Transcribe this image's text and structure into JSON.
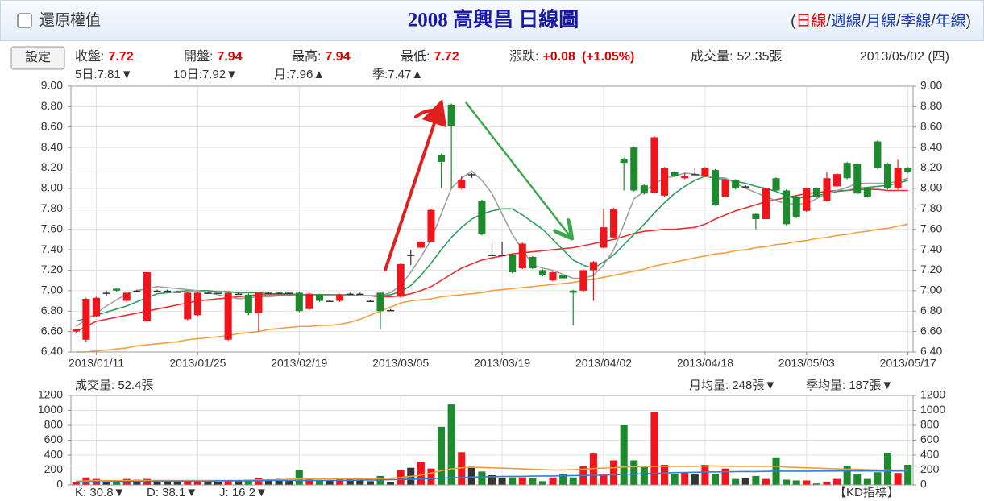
{
  "header": {
    "checkbox_label": "還原權值",
    "title": "2008 高興昌 日線圖",
    "open": "(",
    "close": ")",
    "separator": "/",
    "periods": [
      "日線",
      "週線",
      "月線",
      "季線",
      "年線"
    ],
    "period_colors": [
      "#e00000",
      "#1a3fae",
      "#1a3fae",
      "#1a3fae",
      "#1a3fae"
    ]
  },
  "info": {
    "button": "設定",
    "items": [
      {
        "label": "收盤:",
        "value": "7.72",
        "color": "#e00000",
        "bold": true
      },
      {
        "label": "開盤:",
        "value": "7.94",
        "color": "#e00000",
        "bold": true
      },
      {
        "label": "最高:",
        "value": "7.94",
        "color": "#e00000",
        "bold": true
      },
      {
        "label": "最低:",
        "value": "7.72",
        "color": "#e00000",
        "bold": true
      },
      {
        "label": "漲跌:",
        "value": "+0.08",
        "value2": "(+1.05%)",
        "color": "#e00000",
        "bold": true
      },
      {
        "label": "成交量:",
        "value": "52.35張",
        "color": "#333333",
        "bold": false
      }
    ],
    "date": "2013/05/02 (四)"
  },
  "ma_labels": [
    {
      "text": "5日:7.81▼",
      "color": "#8a8a8a"
    },
    {
      "text": "10日:7.92▼",
      "color": "#1f8a4c"
    },
    {
      "text": "月:7.96▲",
      "color": "#e53030"
    },
    {
      "text": "季:7.47▲",
      "color": "#f08a1c"
    }
  ],
  "chart_data": [
    {
      "type": "candlestick",
      "grid": true,
      "up_color": "#f0141b",
      "down_color": "#1e8a2e",
      "flat_color": "#333333",
      "categories": [
        null,
        null,
        "2013/01/11",
        null,
        null,
        null,
        null,
        null,
        null,
        null,
        null,
        null,
        "2013/01/25",
        null,
        null,
        null,
        null,
        null,
        null,
        null,
        null,
        null,
        "2013/02/19",
        null,
        null,
        null,
        null,
        null,
        null,
        null,
        null,
        null,
        "2013/03/05",
        null,
        null,
        null,
        null,
        null,
        null,
        null,
        null,
        null,
        "2013/03/19",
        null,
        null,
        null,
        null,
        null,
        null,
        null,
        null,
        null,
        "2013/04/02",
        null,
        null,
        null,
        null,
        null,
        null,
        null,
        null,
        null,
        "2013/04/18",
        null,
        null,
        null,
        null,
        null,
        null,
        null,
        null,
        null,
        "2013/05/03",
        null,
        null,
        null,
        null,
        null,
        null,
        null,
        null,
        null,
        "2013/05/17"
      ],
      "open": [
        6.6,
        6.52,
        6.75,
        6.98,
        7.02,
        6.9,
        7.0,
        6.7,
        7.0,
        7.0,
        6.99,
        6.72,
        6.76,
        6.98,
        6.98,
        6.52,
        6.97,
        6.96,
        6.78,
        6.98,
        6.98,
        6.98,
        6.98,
        6.82,
        6.96,
        6.9,
        6.9,
        6.97,
        6.97,
        6.9,
        6.98,
        6.81,
        6.94,
        7.35,
        7.42,
        7.48,
        8.33,
        8.82,
        8.0,
        8.14,
        7.88,
        7.35,
        7.35,
        7.35,
        7.22,
        7.33,
        7.2,
        7.1,
        7.15,
        7.0,
        7.0,
        7.2,
        7.42,
        7.52,
        8.29,
        8.4,
        8.03,
        7.96,
        7.93,
        8.16,
        8.1,
        8.14,
        8.12,
        8.18,
        7.92,
        8.08,
        8.02,
        7.75,
        7.7,
        8.1,
        7.98,
        7.92,
        7.78,
        8.0,
        7.88,
        8.02,
        8.25,
        8.24,
        8.0,
        8.46,
        8.24,
        8.0,
        8.2
      ],
      "high": [
        6.63,
        6.93,
        6.94,
        7.0,
        7.02,
        6.99,
        7.01,
        7.19,
        7.01,
        7.01,
        7.0,
        6.99,
        6.99,
        6.99,
        6.99,
        6.99,
        6.98,
        6.97,
        6.99,
        6.99,
        6.99,
        6.99,
        6.99,
        6.98,
        6.97,
        6.91,
        6.97,
        6.98,
        6.98,
        6.91,
        6.99,
        6.82,
        7.27,
        7.4,
        7.49,
        7.8,
        8.34,
        8.83,
        8.12,
        8.15,
        7.89,
        7.48,
        7.48,
        7.36,
        7.47,
        7.34,
        7.21,
        7.19,
        7.16,
        7.01,
        7.21,
        7.29,
        7.8,
        7.81,
        8.3,
        8.41,
        8.04,
        8.51,
        8.21,
        8.17,
        8.15,
        8.2,
        8.21,
        8.19,
        8.09,
        8.09,
        8.03,
        7.76,
        8.01,
        8.11,
        7.99,
        7.93,
        8.01,
        8.01,
        8.16,
        8.15,
        8.26,
        8.25,
        8.01,
        8.47,
        8.25,
        8.28,
        8.21
      ],
      "low": [
        6.59,
        6.5,
        6.74,
        6.95,
        6.99,
        6.89,
        6.99,
        6.69,
        6.99,
        6.99,
        6.98,
        6.71,
        6.75,
        6.97,
        6.97,
        6.51,
        6.96,
        6.76,
        6.6,
        6.97,
        6.97,
        6.97,
        6.79,
        6.81,
        6.89,
        6.89,
        6.89,
        6.96,
        6.96,
        6.89,
        6.62,
        6.8,
        6.93,
        7.25,
        7.41,
        7.47,
        8.0,
        8.0,
        7.99,
        8.1,
        7.54,
        7.34,
        7.34,
        7.17,
        7.21,
        7.21,
        7.14,
        7.09,
        7.11,
        6.66,
        6.99,
        6.9,
        7.41,
        7.51,
        7.98,
        7.97,
        7.94,
        7.95,
        7.92,
        8.11,
        8.09,
        8.13,
        8.11,
        7.83,
        7.91,
        7.99,
        8.01,
        7.6,
        7.69,
        7.97,
        7.64,
        7.71,
        7.77,
        7.91,
        7.87,
        8.01,
        8.09,
        7.94,
        7.91,
        8.19,
        7.99,
        7.99,
        8.15
      ],
      "close": [
        6.62,
        6.92,
        6.93,
        6.98,
        7.0,
        6.98,
        7.0,
        7.18,
        7.0,
        7.0,
        6.99,
        6.98,
        6.98,
        6.98,
        6.98,
        6.98,
        6.97,
        6.78,
        6.98,
        6.98,
        6.98,
        6.98,
        6.8,
        6.97,
        6.9,
        6.9,
        6.96,
        6.97,
        6.97,
        6.9,
        6.8,
        6.81,
        7.26,
        7.35,
        7.48,
        7.79,
        8.26,
        8.61,
        8.08,
        8.14,
        7.55,
        7.35,
        7.35,
        7.18,
        7.46,
        7.22,
        7.15,
        7.18,
        7.12,
        6.98,
        7.2,
        7.28,
        7.62,
        7.8,
        8.25,
        7.98,
        7.95,
        8.5,
        8.2,
        8.12,
        8.12,
        8.14,
        8.2,
        7.84,
        8.08,
        8.0,
        8.02,
        7.7,
        8.0,
        7.98,
        7.65,
        7.72,
        8.0,
        7.92,
        8.1,
        8.14,
        8.1,
        7.95,
        7.92,
        8.2,
        8.0,
        8.2,
        8.16
      ],
      "series": [
        {
          "color": "#f5a040",
          "values": [
            6.4,
            6.4,
            6.41,
            6.42,
            6.43,
            6.44,
            6.46,
            6.47,
            6.48,
            6.49,
            6.5,
            6.52,
            6.53,
            6.54,
            6.55,
            6.56,
            6.58,
            6.59,
            6.6,
            6.62,
            6.63,
            6.64,
            6.65,
            6.65,
            6.66,
            6.66,
            6.67,
            6.69,
            6.72,
            6.76,
            6.8,
            6.84,
            6.88,
            6.9,
            6.91,
            6.92,
            6.94,
            6.95,
            6.96,
            6.97,
            6.98,
            7.0,
            7.01,
            7.02,
            7.03,
            7.04,
            7.05,
            7.06,
            7.07,
            7.08,
            7.1,
            7.11,
            7.13,
            7.15,
            7.17,
            7.19,
            7.21,
            7.24,
            7.26,
            7.28,
            7.3,
            7.32,
            7.34,
            7.36,
            7.37,
            7.39,
            7.4,
            7.42,
            7.43,
            7.45,
            7.46,
            7.48,
            7.49,
            7.51,
            7.52,
            7.54,
            7.55,
            7.57,
            7.58,
            7.6,
            7.61,
            7.63,
            7.65
          ]
        },
        {
          "color": "#e83030",
          "values": [
            6.6,
            6.65,
            6.7,
            6.72,
            6.74,
            6.76,
            6.78,
            6.8,
            6.82,
            6.84,
            6.86,
            6.88,
            6.9,
            6.91,
            6.92,
            6.93,
            6.94,
            6.95,
            6.96,
            6.96,
            6.96,
            6.96,
            6.96,
            6.96,
            6.96,
            6.96,
            6.95,
            6.95,
            6.95,
            6.95,
            6.94,
            6.94,
            6.95,
            6.97,
            7.0,
            7.04,
            7.1,
            7.16,
            7.22,
            7.26,
            7.3,
            7.32,
            7.34,
            7.36,
            7.37,
            7.38,
            7.39,
            7.4,
            7.41,
            7.42,
            7.44,
            7.46,
            7.48,
            7.5,
            7.53,
            7.56,
            7.58,
            7.59,
            7.6,
            7.6,
            7.61,
            7.62,
            7.65,
            7.7,
            7.74,
            7.78,
            7.81,
            7.84,
            7.87,
            7.89,
            7.91,
            7.93,
            7.95,
            7.96,
            7.97,
            7.98,
            7.98,
            7.99,
            7.99,
            7.99,
            7.98,
            7.98,
            7.98
          ]
        },
        {
          "color": "#2e9e5e",
          "values": [
            6.7,
            6.73,
            6.76,
            6.79,
            6.82,
            6.85,
            6.89,
            6.93,
            6.97,
            6.98,
            6.99,
            7.0,
            7.0,
            7.0,
            6.99,
            6.99,
            6.98,
            6.98,
            6.98,
            6.97,
            6.97,
            6.97,
            6.96,
            6.96,
            6.96,
            6.96,
            6.96,
            6.96,
            6.95,
            6.95,
            6.95,
            6.96,
            6.99,
            7.05,
            7.15,
            7.27,
            7.4,
            7.52,
            7.62,
            7.7,
            7.75,
            7.78,
            7.8,
            7.8,
            7.74,
            7.67,
            7.6,
            7.5,
            7.4,
            7.3,
            7.25,
            7.22,
            7.28,
            7.35,
            7.45,
            7.55,
            7.65,
            7.76,
            7.86,
            7.95,
            8.02,
            8.08,
            8.12,
            8.1,
            8.09,
            8.07,
            8.05,
            8.02,
            8.0,
            7.97,
            7.93,
            7.9,
            7.92,
            7.93,
            7.95,
            7.97,
            7.98,
            8.0,
            8.01,
            8.02,
            8.03,
            8.05,
            8.08
          ]
        },
        {
          "color": "#a0a0a0",
          "values": [
            6.65,
            6.72,
            6.78,
            6.85,
            6.91,
            6.97,
            7.0,
            7.02,
            7.04,
            7.03,
            7.02,
            7.01,
            7.0,
            6.98,
            6.96,
            6.94,
            6.92,
            6.93,
            6.94,
            6.94,
            6.95,
            6.95,
            6.95,
            6.95,
            6.95,
            6.95,
            6.95,
            6.95,
            6.95,
            6.95,
            6.95,
            6.98,
            7.05,
            7.18,
            7.33,
            7.5,
            7.75,
            8.0,
            8.1,
            8.17,
            8.08,
            7.95,
            7.75,
            7.55,
            7.4,
            7.25,
            7.22,
            7.2,
            7.16,
            7.12,
            7.12,
            7.15,
            7.25,
            7.4,
            7.65,
            7.9,
            7.97,
            8.04,
            8.1,
            8.12,
            8.15,
            8.14,
            8.12,
            8.11,
            8.1,
            8.05,
            8.0,
            7.96,
            7.92,
            7.88,
            7.85,
            7.85,
            7.85,
            7.9,
            7.95,
            7.98,
            8.01,
            8.05,
            8.05,
            8.05,
            8.05,
            8.07,
            8.1
          ]
        }
      ],
      "ylim": [
        6.4,
        9.0
      ],
      "yticks": [
        {
          "value": 6.4,
          "label": "6.40"
        },
        {
          "value": 6.6,
          "label": "6.60"
        },
        {
          "value": 6.8,
          "label": "6.80"
        },
        {
          "value": 7.0,
          "label": "7.00"
        },
        {
          "value": 7.2,
          "label": "7.20"
        },
        {
          "value": 7.4,
          "label": "7.40"
        },
        {
          "value": 7.6,
          "label": "7.60"
        },
        {
          "value": 7.8,
          "label": "7.80"
        },
        {
          "value": 8.0,
          "label": "8.00"
        },
        {
          "value": 8.2,
          "label": "8.20"
        },
        {
          "value": 8.4,
          "label": "8.40"
        },
        {
          "value": 8.6,
          "label": "8.60"
        },
        {
          "value": 8.8,
          "label": "8.80"
        },
        {
          "value": 9.0,
          "label": "9.00"
        }
      ]
    },
    {
      "type": "bar",
      "grid": true,
      "title": "成交量: 52.4張",
      "annotations": [
        {
          "text": "月均量: 248張▼",
          "color": "#f08a1c"
        },
        {
          "text": "季均量: 187張▼",
          "color": "#1f7fd6"
        }
      ],
      "values": [
        40,
        100,
        80,
        50,
        50,
        80,
        70,
        80,
        60,
        40,
        40,
        60,
        40,
        40,
        40,
        60,
        50,
        70,
        90,
        60,
        80,
        60,
        200,
        80,
        60,
        60,
        80,
        80,
        60,
        50,
        120,
        40,
        200,
        230,
        310,
        220,
        780,
        1080,
        440,
        230,
        180,
        130,
        90,
        100,
        100,
        90,
        50,
        100,
        150,
        100,
        250,
        420,
        150,
        330,
        800,
        330,
        260,
        980,
        270,
        150,
        170,
        140,
        270,
        150,
        220,
        80,
        90,
        120,
        80,
        370,
        70,
        60,
        60,
        20,
        40,
        80,
        260,
        150,
        80,
        170,
        430,
        160,
        270
      ],
      "series": [
        {
          "color": "#f39c32",
          "values": [
            50,
            55,
            60,
            60,
            60,
            60,
            60,
            60,
            60,
            60,
            60,
            60,
            60,
            60,
            60,
            60,
            60,
            65,
            65,
            70,
            70,
            75,
            80,
            80,
            80,
            80,
            80,
            80,
            80,
            80,
            85,
            90,
            100,
            115,
            130,
            160,
            190,
            215,
            230,
            240,
            235,
            230,
            225,
            220,
            215,
            210,
            205,
            200,
            200,
            205,
            210,
            220,
            225,
            230,
            240,
            245,
            245,
            250,
            250,
            250,
            250,
            250,
            255,
            255,
            250,
            250,
            250,
            250,
            250,
            250,
            240,
            235,
            230,
            225,
            220,
            215,
            210,
            210,
            205,
            200,
            200,
            200,
            200
          ]
        },
        {
          "color": "#2f7fdc",
          "values": [
            40,
            40,
            40,
            40,
            45,
            45,
            45,
            45,
            50,
            50,
            50,
            50,
            50,
            50,
            55,
            55,
            55,
            55,
            55,
            60,
            60,
            60,
            60,
            60,
            60,
            60,
            60,
            60,
            65,
            65,
            65,
            70,
            72,
            75,
            80,
            85,
            90,
            95,
            100,
            105,
            108,
            110,
            112,
            115,
            115,
            118,
            120,
            120,
            122,
            125,
            128,
            130,
            132,
            135,
            140,
            145,
            150,
            155,
            160,
            165,
            168,
            170,
            172,
            175,
            175,
            178,
            180,
            180,
            182,
            185,
            185,
            185,
            185,
            186,
            186,
            187,
            187,
            187,
            187,
            187,
            187,
            187,
            187
          ]
        }
      ],
      "ylim": [
        0,
        1200
      ],
      "yticks": [
        0,
        200,
        400,
        600,
        800,
        1000,
        1200
      ]
    }
  ],
  "footer": {
    "kd": [
      {
        "text": "K: 30.8▼",
        "color": "#e00000"
      },
      {
        "text": "D: 38.1▼",
        "color": "#1e8a2e"
      },
      {
        "text": "J: 16.2▼",
        "color": "#7b2bd0"
      }
    ],
    "indicator": "【KD指標】"
  }
}
